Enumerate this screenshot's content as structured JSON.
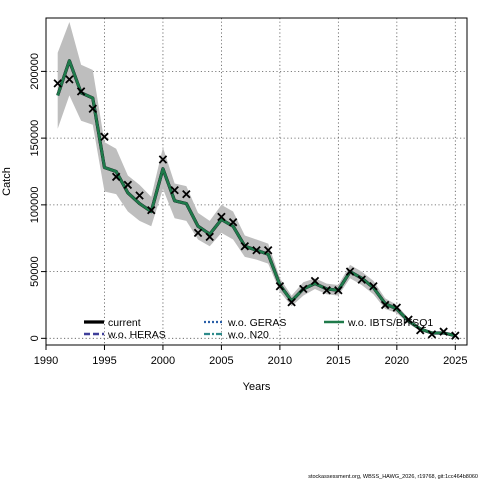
{
  "chart_data": {
    "type": "line",
    "xlabel": "Years",
    "ylabel": "Catch",
    "xlim": [
      1990,
      2026
    ],
    "ylim": [
      -5000,
      240000
    ],
    "x_ticks": [
      1990,
      1995,
      2000,
      2005,
      2010,
      2015,
      2020,
      2025
    ],
    "y_ticks": [
      0,
      50000,
      100000,
      150000,
      200000
    ],
    "grid": true,
    "legend_position": "bottom",
    "colors": {
      "band": "#bebebe",
      "current": "#000000",
      "heras": "#3f3f9a",
      "geras": "#2a5fa8",
      "n20": "#2e8b8b",
      "ibts": "#1f7a4a"
    },
    "years": [
      1991,
      1992,
      1993,
      1994,
      1995,
      1996,
      1997,
      1998,
      1999,
      2000,
      2001,
      2002,
      2003,
      2004,
      2005,
      2006,
      2007,
      2008,
      2009,
      2010,
      2011,
      2012,
      2013,
      2014,
      2015,
      2016,
      2017,
      2018,
      2019,
      2020,
      2021,
      2022,
      2023,
      2024,
      2025
    ],
    "estimate": [
      182000,
      208000,
      184000,
      180000,
      128000,
      125000,
      109000,
      101000,
      95000,
      127000,
      103000,
      101000,
      84000,
      78000,
      89000,
      84000,
      69000,
      66000,
      63000,
      40000,
      28000,
      37000,
      41000,
      37000,
      36000,
      50000,
      45000,
      38000,
      26000,
      22000,
      13000,
      7000,
      4000,
      4000,
      2000
    ],
    "upper": [
      214000,
      237000,
      205000,
      201000,
      147000,
      142000,
      122000,
      115000,
      106000,
      143000,
      116000,
      114000,
      94000,
      88000,
      100000,
      95000,
      77000,
      74000,
      71000,
      45000,
      32000,
      42000,
      45000,
      41000,
      40000,
      55000,
      50000,
      43000,
      30000,
      25000,
      15000,
      8500,
      5000,
      5000,
      2500
    ],
    "lower": [
      157000,
      182000,
      163000,
      160000,
      110000,
      108000,
      95000,
      88000,
      84000,
      112000,
      90000,
      88000,
      74000,
      69000,
      79000,
      74000,
      61000,
      59000,
      56000,
      35000,
      24000,
      32000,
      37000,
      33000,
      32000,
      45000,
      40000,
      33000,
      22000,
      19000,
      11000,
      5500,
      3000,
      3000,
      1500
    ],
    "observed_years": [
      1991,
      1992,
      1993,
      1994,
      1995,
      1996,
      1997,
      1998,
      1999,
      2000,
      2001,
      2002,
      2003,
      2004,
      2005,
      2006,
      2007,
      2008,
      2009,
      2010,
      2011,
      2012,
      2013,
      2014,
      2015,
      2016,
      2017,
      2018,
      2019,
      2020,
      2021,
      2022,
      2023,
      2024,
      2025
    ],
    "observed": [
      191000,
      194000,
      185000,
      172000,
      151000,
      121000,
      115000,
      107000,
      96000,
      134000,
      111000,
      108000,
      79000,
      76000,
      91000,
      87000,
      69000,
      66000,
      66000,
      39000,
      27000,
      37000,
      43000,
      36000,
      36000,
      50000,
      44000,
      39000,
      25000,
      23000,
      14000,
      6000,
      3000,
      5000,
      2000
    ],
    "series": [
      {
        "name": "current",
        "style": "solid",
        "color_key": "current"
      },
      {
        "name": "w.o. HERAS",
        "style": "dashed",
        "color_key": "heras"
      },
      {
        "name": "w.o. GERAS",
        "style": "dotted",
        "color_key": "geras"
      },
      {
        "name": "w.o. N20",
        "style": "dashdot",
        "color_key": "n20"
      },
      {
        "name": "w.o. IBTS/BITS Q1",
        "style": "solid-thick",
        "color_key": "ibts"
      }
    ],
    "legend": {
      "row1": [
        "current",
        "w.o. GERAS",
        "w.o. IBTS/BITSQ1"
      ],
      "row2": [
        "w.o. HERAS",
        "w.o. N20"
      ]
    },
    "footnote": "stockassessment.org, WBSS_HAWG_2026, r19768, git:1cc464b8060"
  }
}
